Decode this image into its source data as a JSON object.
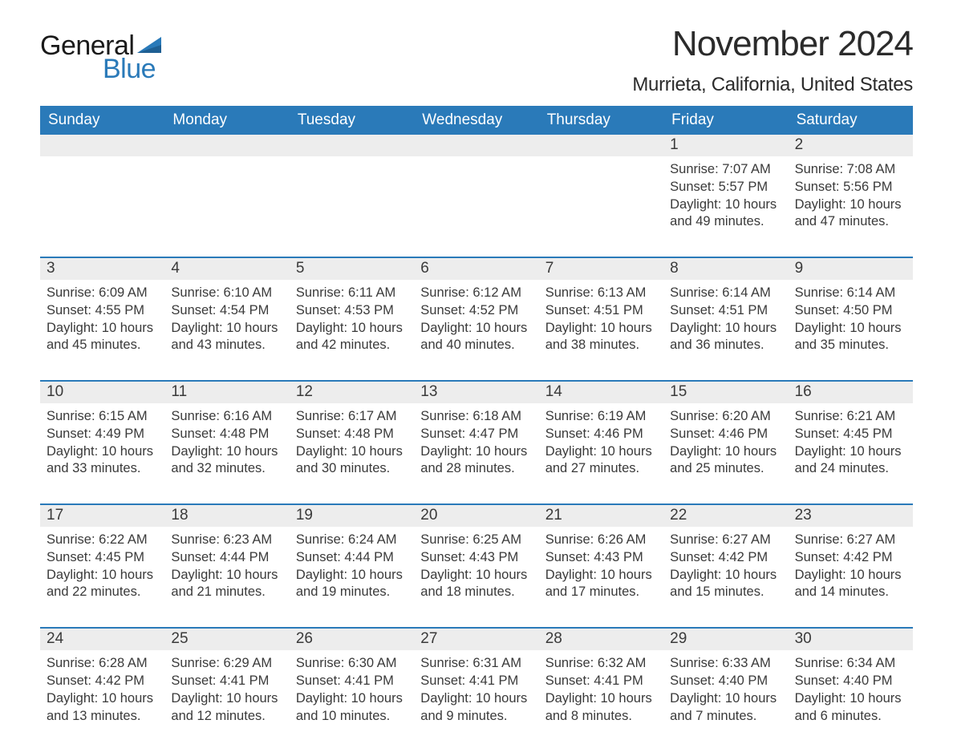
{
  "logo": {
    "word1": "General",
    "word2": "Blue",
    "sail_color": "#2a7ab9",
    "word1_color": "#1a1a1a"
  },
  "title": "November 2024",
  "location": "Murrieta, California, United States",
  "colors": {
    "header_bg": "#2a7ab9",
    "header_text": "#ffffff",
    "daynum_bg": "#ededed",
    "rule": "#2a7ab9",
    "body_text": "#3a3a3a",
    "page_bg": "#ffffff"
  },
  "typography": {
    "title_fontsize": 44,
    "location_fontsize": 24,
    "weekday_fontsize": 19,
    "daynum_fontsize": 19,
    "cell_fontsize": 16.5
  },
  "weekdays": [
    "Sunday",
    "Monday",
    "Tuesday",
    "Wednesday",
    "Thursday",
    "Friday",
    "Saturday"
  ],
  "weeks": [
    [
      null,
      null,
      null,
      null,
      null,
      {
        "n": "1",
        "sunrise": "Sunrise: 7:07 AM",
        "sunset": "Sunset: 5:57 PM",
        "day1": "Daylight: 10 hours",
        "day2": "and 49 minutes."
      },
      {
        "n": "2",
        "sunrise": "Sunrise: 7:08 AM",
        "sunset": "Sunset: 5:56 PM",
        "day1": "Daylight: 10 hours",
        "day2": "and 47 minutes."
      }
    ],
    [
      {
        "n": "3",
        "sunrise": "Sunrise: 6:09 AM",
        "sunset": "Sunset: 4:55 PM",
        "day1": "Daylight: 10 hours",
        "day2": "and 45 minutes."
      },
      {
        "n": "4",
        "sunrise": "Sunrise: 6:10 AM",
        "sunset": "Sunset: 4:54 PM",
        "day1": "Daylight: 10 hours",
        "day2": "and 43 minutes."
      },
      {
        "n": "5",
        "sunrise": "Sunrise: 6:11 AM",
        "sunset": "Sunset: 4:53 PM",
        "day1": "Daylight: 10 hours",
        "day2": "and 42 minutes."
      },
      {
        "n": "6",
        "sunrise": "Sunrise: 6:12 AM",
        "sunset": "Sunset: 4:52 PM",
        "day1": "Daylight: 10 hours",
        "day2": "and 40 minutes."
      },
      {
        "n": "7",
        "sunrise": "Sunrise: 6:13 AM",
        "sunset": "Sunset: 4:51 PM",
        "day1": "Daylight: 10 hours",
        "day2": "and 38 minutes."
      },
      {
        "n": "8",
        "sunrise": "Sunrise: 6:14 AM",
        "sunset": "Sunset: 4:51 PM",
        "day1": "Daylight: 10 hours",
        "day2": "and 36 minutes."
      },
      {
        "n": "9",
        "sunrise": "Sunrise: 6:14 AM",
        "sunset": "Sunset: 4:50 PM",
        "day1": "Daylight: 10 hours",
        "day2": "and 35 minutes."
      }
    ],
    [
      {
        "n": "10",
        "sunrise": "Sunrise: 6:15 AM",
        "sunset": "Sunset: 4:49 PM",
        "day1": "Daylight: 10 hours",
        "day2": "and 33 minutes."
      },
      {
        "n": "11",
        "sunrise": "Sunrise: 6:16 AM",
        "sunset": "Sunset: 4:48 PM",
        "day1": "Daylight: 10 hours",
        "day2": "and 32 minutes."
      },
      {
        "n": "12",
        "sunrise": "Sunrise: 6:17 AM",
        "sunset": "Sunset: 4:48 PM",
        "day1": "Daylight: 10 hours",
        "day2": "and 30 minutes."
      },
      {
        "n": "13",
        "sunrise": "Sunrise: 6:18 AM",
        "sunset": "Sunset: 4:47 PM",
        "day1": "Daylight: 10 hours",
        "day2": "and 28 minutes."
      },
      {
        "n": "14",
        "sunrise": "Sunrise: 6:19 AM",
        "sunset": "Sunset: 4:46 PM",
        "day1": "Daylight: 10 hours",
        "day2": "and 27 minutes."
      },
      {
        "n": "15",
        "sunrise": "Sunrise: 6:20 AM",
        "sunset": "Sunset: 4:46 PM",
        "day1": "Daylight: 10 hours",
        "day2": "and 25 minutes."
      },
      {
        "n": "16",
        "sunrise": "Sunrise: 6:21 AM",
        "sunset": "Sunset: 4:45 PM",
        "day1": "Daylight: 10 hours",
        "day2": "and 24 minutes."
      }
    ],
    [
      {
        "n": "17",
        "sunrise": "Sunrise: 6:22 AM",
        "sunset": "Sunset: 4:45 PM",
        "day1": "Daylight: 10 hours",
        "day2": "and 22 minutes."
      },
      {
        "n": "18",
        "sunrise": "Sunrise: 6:23 AM",
        "sunset": "Sunset: 4:44 PM",
        "day1": "Daylight: 10 hours",
        "day2": "and 21 minutes."
      },
      {
        "n": "19",
        "sunrise": "Sunrise: 6:24 AM",
        "sunset": "Sunset: 4:44 PM",
        "day1": "Daylight: 10 hours",
        "day2": "and 19 minutes."
      },
      {
        "n": "20",
        "sunrise": "Sunrise: 6:25 AM",
        "sunset": "Sunset: 4:43 PM",
        "day1": "Daylight: 10 hours",
        "day2": "and 18 minutes."
      },
      {
        "n": "21",
        "sunrise": "Sunrise: 6:26 AM",
        "sunset": "Sunset: 4:43 PM",
        "day1": "Daylight: 10 hours",
        "day2": "and 17 minutes."
      },
      {
        "n": "22",
        "sunrise": "Sunrise: 6:27 AM",
        "sunset": "Sunset: 4:42 PM",
        "day1": "Daylight: 10 hours",
        "day2": "and 15 minutes."
      },
      {
        "n": "23",
        "sunrise": "Sunrise: 6:27 AM",
        "sunset": "Sunset: 4:42 PM",
        "day1": "Daylight: 10 hours",
        "day2": "and 14 minutes."
      }
    ],
    [
      {
        "n": "24",
        "sunrise": "Sunrise: 6:28 AM",
        "sunset": "Sunset: 4:42 PM",
        "day1": "Daylight: 10 hours",
        "day2": "and 13 minutes."
      },
      {
        "n": "25",
        "sunrise": "Sunrise: 6:29 AM",
        "sunset": "Sunset: 4:41 PM",
        "day1": "Daylight: 10 hours",
        "day2": "and 12 minutes."
      },
      {
        "n": "26",
        "sunrise": "Sunrise: 6:30 AM",
        "sunset": "Sunset: 4:41 PM",
        "day1": "Daylight: 10 hours",
        "day2": "and 10 minutes."
      },
      {
        "n": "27",
        "sunrise": "Sunrise: 6:31 AM",
        "sunset": "Sunset: 4:41 PM",
        "day1": "Daylight: 10 hours",
        "day2": "and 9 minutes."
      },
      {
        "n": "28",
        "sunrise": "Sunrise: 6:32 AM",
        "sunset": "Sunset: 4:41 PM",
        "day1": "Daylight: 10 hours",
        "day2": "and 8 minutes."
      },
      {
        "n": "29",
        "sunrise": "Sunrise: 6:33 AM",
        "sunset": "Sunset: 4:40 PM",
        "day1": "Daylight: 10 hours",
        "day2": "and 7 minutes."
      },
      {
        "n": "30",
        "sunrise": "Sunrise: 6:34 AM",
        "sunset": "Sunset: 4:40 PM",
        "day1": "Daylight: 10 hours",
        "day2": "and 6 minutes."
      }
    ]
  ]
}
